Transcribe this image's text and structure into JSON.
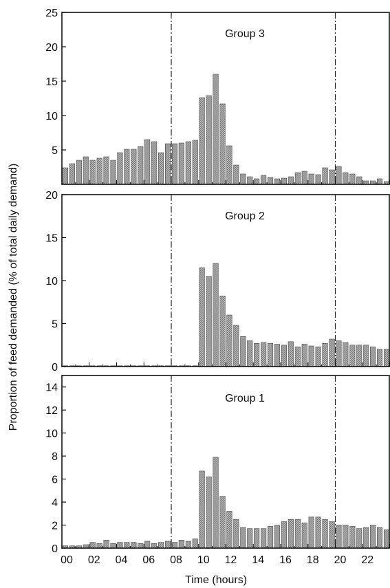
{
  "figure": {
    "ylabel": "Proportion of feed demanded (% of total daily demand)",
    "xlabel": "Time (hours)",
    "x_tick_labels": [
      "00",
      "02",
      "04",
      "06",
      "08",
      "10",
      "12",
      "14",
      "16",
      "18",
      "20",
      "22"
    ]
  },
  "colors": {
    "bar_light": "#aaaaaa",
    "bar_dark": "#4a4a4a",
    "axis": "#111111",
    "divider": "#222222"
  },
  "chart_data": [
    {
      "type": "bar",
      "title": "Group 3",
      "xlabel": "Time (hours)",
      "ylabel": "Proportion of feed demanded (% of total daily demand)",
      "xlim": [
        0,
        24
      ],
      "ylim": [
        0,
        25
      ],
      "yticks": [
        5,
        10,
        15,
        20,
        25
      ],
      "lights_on": 8,
      "lights_off": 20,
      "bin_hours": 0.5,
      "values": [
        2.4,
        3.0,
        3.5,
        4.0,
        3.5,
        3.8,
        4.0,
        3.5,
        4.6,
        5.1,
        5.1,
        5.5,
        6.5,
        6.2,
        4.6,
        5.9,
        5.9,
        6.0,
        6.2,
        6.4,
        12.6,
        12.9,
        16.0,
        11.7,
        5.6,
        2.8,
        1.5,
        1.1,
        0.8,
        1.3,
        1.0,
        0.8,
        0.9,
        1.1,
        1.7,
        1.9,
        1.5,
        1.4,
        2.4,
        2.1,
        2.6,
        1.7,
        1.5,
        1.1,
        0.5,
        0.5,
        0.8,
        0.4,
        0.0,
        0.0,
        0.0,
        0.0,
        0.0,
        0.4,
        0.4,
        0.7,
        1.1,
        1.3,
        1.1,
        1.8
      ]
    },
    {
      "type": "bar",
      "title": "Group 2",
      "xlabel": "Time (hours)",
      "ylabel": "Proportion of feed demanded (% of total daily demand)",
      "xlim": [
        0,
        24
      ],
      "ylim": [
        0,
        20
      ],
      "yticks": [
        0,
        5,
        10,
        15,
        20
      ],
      "lights_on": 8,
      "lights_off": 20,
      "bin_hours": 0.5,
      "values": [
        0.1,
        0.1,
        0.1,
        0.1,
        0.1,
        0.1,
        0.1,
        0.1,
        0.1,
        0.1,
        0.1,
        0.1,
        0.1,
        0.1,
        0.1,
        0.1,
        0.1,
        0.1,
        0.1,
        0.1,
        11.5,
        10.5,
        12.0,
        8.2,
        6.0,
        4.8,
        3.5,
        3.0,
        2.7,
        2.8,
        2.7,
        2.6,
        2.5,
        2.9,
        2.3,
        2.6,
        2.4,
        2.3,
        2.7,
        3.2,
        3.0,
        2.8,
        2.5,
        2.5,
        2.5,
        2.3,
        2.0,
        2.0,
        2.0,
        2.3,
        2.4,
        1.9,
        1.5,
        1.3,
        1.2,
        0.5,
        0.2,
        0.1,
        0.1,
        0.3
      ]
    },
    {
      "type": "bar",
      "title": "Group 1",
      "xlabel": "Time (hours)",
      "ylabel": "Proportion of feed demanded (% of total daily demand)",
      "xlim": [
        0,
        24
      ],
      "ylim": [
        0,
        15
      ],
      "yticks": [
        0,
        2,
        4,
        6,
        8,
        10,
        12,
        14
      ],
      "lights_on": 8,
      "lights_off": 20,
      "bin_hours": 0.5,
      "values": [
        0.2,
        0.2,
        0.2,
        0.3,
        0.5,
        0.4,
        0.7,
        0.4,
        0.5,
        0.5,
        0.5,
        0.4,
        0.6,
        0.4,
        0.5,
        0.6,
        0.5,
        0.7,
        0.6,
        0.8,
        6.7,
        6.2,
        7.9,
        4.5,
        3.2,
        2.5,
        1.8,
        1.7,
        1.7,
        1.7,
        1.9,
        2.0,
        2.3,
        2.5,
        2.5,
        2.2,
        2.7,
        2.7,
        2.5,
        2.3,
        2.0,
        2.0,
        1.9,
        1.7,
        1.8,
        2.0,
        1.8,
        1.6,
        1.4,
        1.2,
        1.0,
        0.9,
        0.8,
        0.5,
        0.3,
        0.3,
        0.4,
        0.4,
        0.5,
        0.4
      ]
    }
  ]
}
